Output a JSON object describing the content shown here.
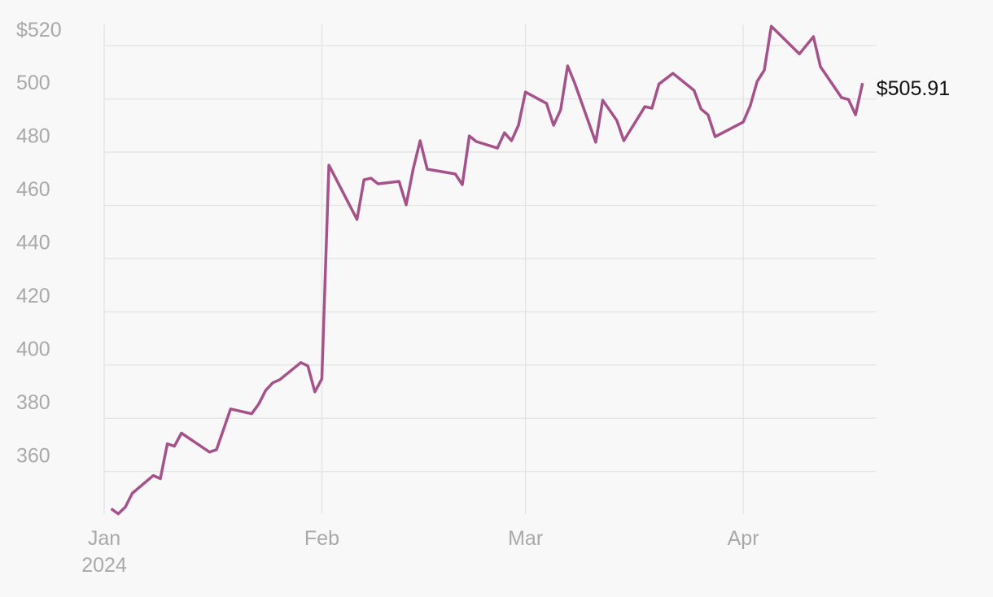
{
  "chart_data": {
    "type": "line",
    "x": [
      1,
      2,
      3,
      4,
      7,
      8,
      9,
      10,
      11,
      15,
      16,
      18,
      21,
      22,
      23,
      24,
      25,
      28,
      29,
      30,
      31,
      32,
      36,
      37,
      38,
      39,
      42,
      43,
      44,
      45,
      46,
      50,
      51,
      52,
      53,
      56,
      57,
      58,
      59,
      60,
      63,
      64,
      65,
      66,
      67,
      70,
      71,
      73,
      74,
      77,
      78,
      79,
      81,
      84,
      85,
      86,
      87,
      91,
      92,
      93,
      94,
      95,
      99,
      101,
      102,
      105,
      106,
      107,
      108
    ],
    "values": [
      346.0,
      344.1,
      346.6,
      351.8,
      358.5,
      357.3,
      370.4,
      369.5,
      374.4,
      367.3,
      368.2,
      383.5,
      381.7,
      385.3,
      390.5,
      393.3,
      394.5,
      400.9,
      399.7,
      389.9,
      394.8,
      475.1,
      454.7,
      469.6,
      470.2,
      468.1,
      469.0,
      460.2,
      473.6,
      484.3,
      473.6,
      471.8,
      467.8,
      486.1,
      484.0,
      481.5,
      487.3,
      484.3,
      490.1,
      502.6,
      498.3,
      490.1,
      495.9,
      512.4,
      506.0,
      483.7,
      499.5,
      491.9,
      484.3,
      497.1,
      496.5,
      505.6,
      509.6,
      503.2,
      496.2,
      494.0,
      485.8,
      491.3,
      497.4,
      506.6,
      510.8,
      527.3,
      516.9,
      523.4,
      512.1,
      500.5,
      499.8,
      494.0,
      505.91
    ],
    "color": "#a6528a",
    "annotation": "$505.91",
    "xlim": [
      0,
      110
    ],
    "xticks": [
      {
        "value": 0,
        "label": "Jan\n2024"
      },
      {
        "value": 31,
        "label": "Feb"
      },
      {
        "value": 60,
        "label": "Mar"
      },
      {
        "value": 91,
        "label": "Apr"
      }
    ],
    "ylim": [
      344,
      528
    ],
    "yticks": [
      360,
      380,
      400,
      420,
      440,
      460,
      480,
      500,
      {
        "value": 520,
        "label": "$520"
      }
    ],
    "grid": true
  }
}
